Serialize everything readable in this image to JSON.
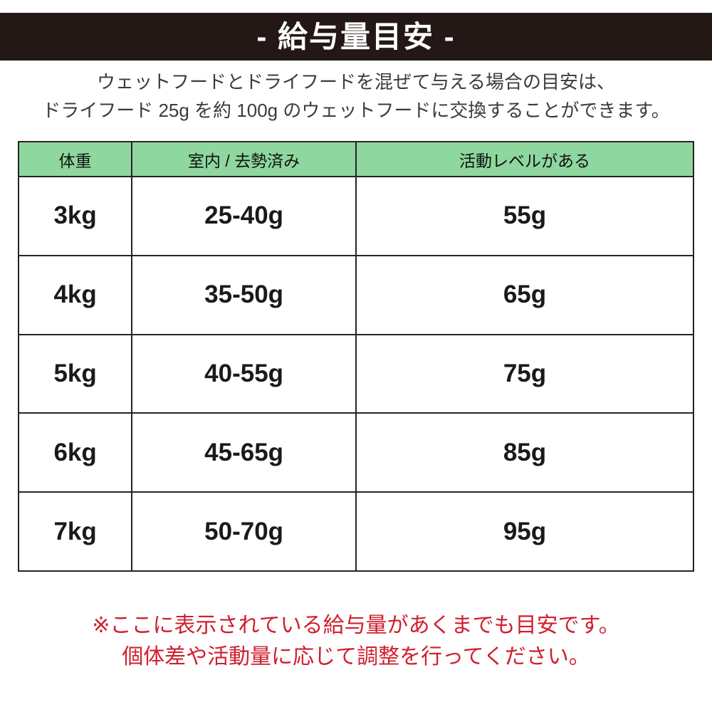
{
  "banner": {
    "title": "- 給与量目安 -"
  },
  "description": {
    "line1": "ウェットフードとドライフードを混ぜて与える場合の目安は、",
    "line2": "ドライフード 25g を約 100g のウェットフードに交換することができます。"
  },
  "table": {
    "columns": [
      "体重",
      "室内 / 去勢済み",
      "活動レベルがある"
    ],
    "rows": [
      {
        "weight": "3kg",
        "indoor": "25-40g",
        "active": "55g"
      },
      {
        "weight": "4kg",
        "indoor": "35-50g",
        "active": "65g"
      },
      {
        "weight": "5kg",
        "indoor": "40-55g",
        "active": "75g"
      },
      {
        "weight": "6kg",
        "indoor": "45-65g",
        "active": "85g"
      },
      {
        "weight": "7kg",
        "indoor": "50-70g",
        "active": "95g"
      }
    ]
  },
  "footnote": {
    "line1": "※ここに表示されている給与量があくまでも目安です。",
    "line2": "個体差や活動量に応じて調整を行ってください。"
  },
  "colors": {
    "banner_bg": "#231815",
    "header_green": "#8ed79e",
    "note_red": "#d01f2d",
    "border_dark": "#2b2220",
    "desc_gray": "#3e3a39"
  }
}
